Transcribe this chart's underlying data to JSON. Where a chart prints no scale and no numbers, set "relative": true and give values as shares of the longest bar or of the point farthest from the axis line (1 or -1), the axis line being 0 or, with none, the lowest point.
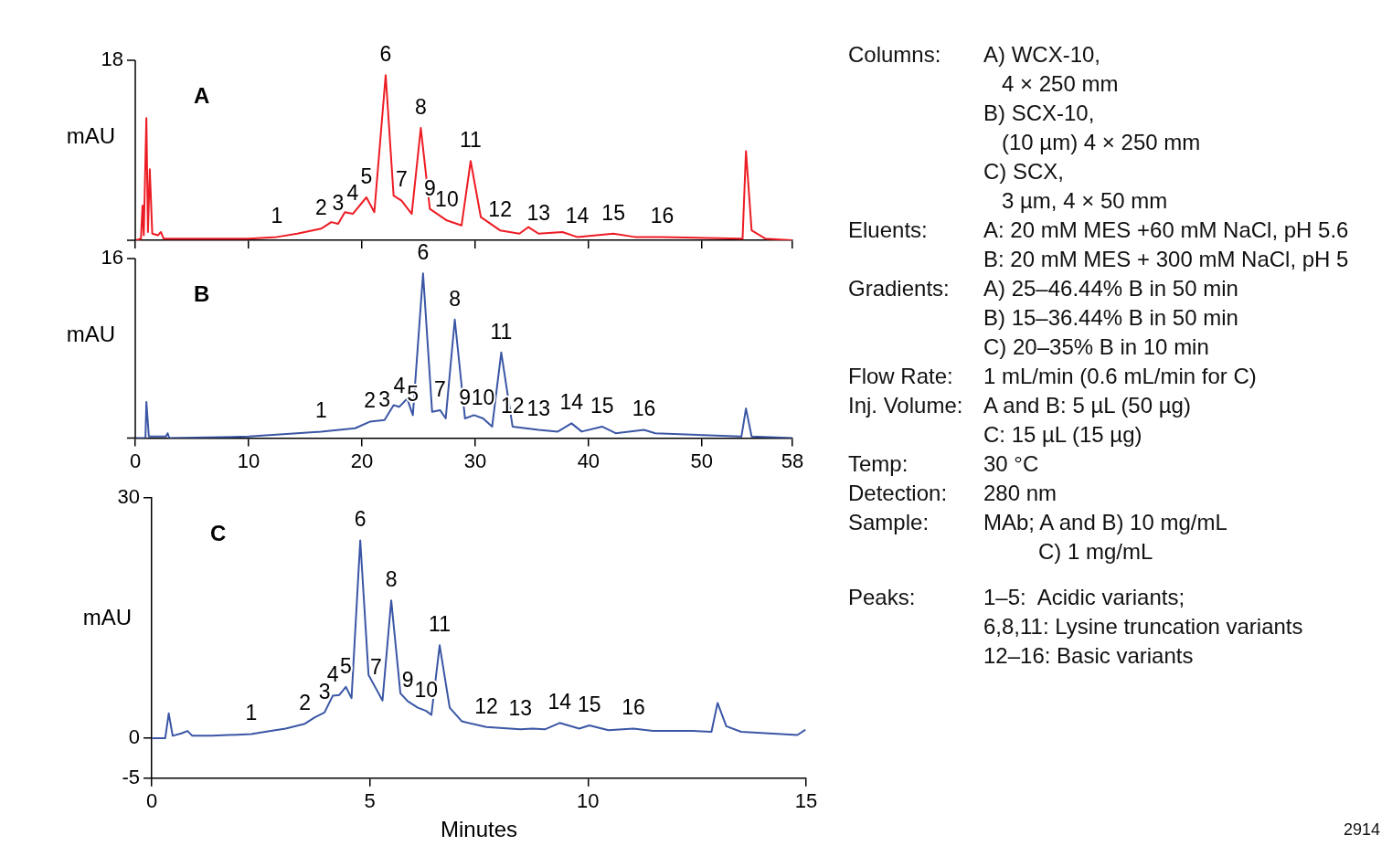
{
  "chart_data": [
    {
      "type": "line",
      "relative": true,
      "ylabel": "mAU",
      "marker": "none",
      "xlim": [
        0,
        58
      ],
      "xticks": [
        0,
        10,
        20,
        30,
        40,
        50,
        58
      ],
      "tick_labels": false,
      "series": [
        {
          "color": "#ed1c24",
          "x": [
            0,
            0.5,
            0.64,
            0.75,
            0.98,
            1.12,
            1.28,
            1.5,
            2.0,
            2.26,
            2.5,
            5,
            10,
            12.5,
            14.3,
            16.4,
            17.3,
            17.9,
            18.5,
            19.2,
            20.4,
            21.1,
            22.1,
            22.8,
            23.5,
            24.4,
            25.2,
            26.0,
            27.5,
            28.8,
            29.6,
            30.5,
            32.2,
            33.9,
            34.7,
            35.6,
            37.7,
            39.0,
            42.2,
            44.1,
            46.5,
            53.6,
            53.9,
            54.4,
            55.6,
            58
          ],
          "values": [
            0,
            0.01,
            0.21,
            0.03,
            0.74,
            0.05,
            0.43,
            0.04,
            0.03,
            0.05,
            0.01,
            0.01,
            0.01,
            0.02,
            0.04,
            0.07,
            0.11,
            0.1,
            0.17,
            0.16,
            0.26,
            0.17,
            1,
            0.27,
            0.24,
            0.16,
            0.68,
            0.19,
            0.12,
            0.09,
            0.48,
            0.14,
            0.06,
            0.04,
            0.08,
            0.04,
            0.05,
            0.02,
            0.04,
            0.02,
            0.02,
            0.01,
            0.54,
            0.06,
            0.01,
            0
          ]
        }
      ],
      "annotations": [
        "A",
        "18",
        {
          "text": "1",
          "x": 12.5,
          "y": 0.02
        },
        {
          "text": "2",
          "x": 16.4,
          "y": 0.07
        },
        {
          "text": "3",
          "x": 17.9,
          "y": 0.1
        },
        {
          "text": "4",
          "x": 19.2,
          "y": 0.16
        },
        {
          "text": "5",
          "x": 20.4,
          "y": 0.26
        },
        {
          "text": "6",
          "x": 22.1,
          "y": 1
        },
        {
          "text": "7",
          "x": 23.5,
          "y": 0.24
        },
        {
          "text": "8",
          "x": 25.2,
          "y": 0.68
        },
        {
          "text": "9",
          "x": 26.0,
          "y": 0.19
        },
        {
          "text": "10",
          "x": 27.5,
          "y": 0.12
        },
        {
          "text": "11",
          "x": 29.6,
          "y": 0.48
        },
        {
          "text": "12",
          "x": 32.2,
          "y": 0.06
        },
        {
          "text": "13",
          "x": 35.6,
          "y": 0.04
        },
        {
          "text": "14",
          "x": 39.0,
          "y": 0.02
        },
        {
          "text": "15",
          "x": 42.2,
          "y": 0.04
        },
        {
          "text": "16",
          "x": 46.5,
          "y": 0.02
        }
      ]
    },
    {
      "type": "line",
      "relative": true,
      "ylabel": "mAU",
      "marker": "none",
      "xlim": [
        0,
        58
      ],
      "xticks": [
        0,
        10,
        20,
        30,
        40,
        50,
        58
      ],
      "tick_labels": "x",
      "series": [
        {
          "color": "#3a56a5",
          "x": [
            0,
            0.9,
            0.98,
            1.2,
            2.7,
            2.86,
            3.0,
            10,
            16.4,
            19.4,
            20.7,
            22.0,
            22.8,
            23.3,
            24.0,
            24.5,
            25.4,
            26.2,
            26.9,
            27.4,
            28.2,
            29.1,
            29.9,
            30.7,
            31.5,
            32.3,
            33.3,
            35.6,
            37.3,
            38.5,
            39.4,
            41.2,
            42.4,
            44.9,
            45.9,
            53.5,
            53.9,
            54.4,
            58
          ],
          "values": [
            0,
            0,
            0.22,
            0.01,
            0.01,
            0.03,
            0,
            0.01,
            0.04,
            0.06,
            0.1,
            0.11,
            0.2,
            0.19,
            0.24,
            0.14,
            1,
            0.16,
            0.17,
            0.12,
            0.72,
            0.12,
            0.14,
            0.12,
            0.07,
            0.52,
            0.07,
            0.05,
            0.04,
            0.09,
            0.04,
            0.07,
            0.03,
            0.05,
            0.03,
            0.01,
            0.18,
            0.01,
            0
          ]
        }
      ],
      "annotations": [
        "B",
        "16",
        {
          "text": "1",
          "x": 16.4,
          "y": 0.04
        },
        {
          "text": "2",
          "x": 20.7,
          "y": 0.1
        },
        {
          "text": "3",
          "x": 22.0,
          "y": 0.11
        },
        {
          "text": "4",
          "x": 23.3,
          "y": 0.19
        },
        {
          "text": "5",
          "x": 24.5,
          "y": 0.14
        },
        {
          "text": "6",
          "x": 25.4,
          "y": 1
        },
        {
          "text": "7",
          "x": 26.9,
          "y": 0.17
        },
        {
          "text": "8",
          "x": 28.2,
          "y": 0.72
        },
        {
          "text": "9",
          "x": 29.1,
          "y": 0.12
        },
        {
          "text": "10",
          "x": 30.7,
          "y": 0.12
        },
        {
          "text": "11",
          "x": 32.3,
          "y": 0.52
        },
        {
          "text": "12",
          "x": 33.3,
          "y": 0.07
        },
        {
          "text": "13",
          "x": 35.6,
          "y": 0.05
        },
        {
          "text": "14",
          "x": 38.5,
          "y": 0.09
        },
        {
          "text": "15",
          "x": 41.2,
          "y": 0.07
        },
        {
          "text": "16",
          "x": 44.9,
          "y": 0.05
        }
      ]
    },
    {
      "type": "line",
      "ylabel": "mAU",
      "xlabel": "Minutes",
      "marker": "none",
      "xlim": [
        0,
        15
      ],
      "xticks": [
        0,
        5,
        10,
        15
      ],
      "ylim": [
        -5,
        30
      ],
      "yticks": [
        -5,
        0,
        30
      ],
      "series": [
        {
          "color": "#3a56a5",
          "x": [
            0,
            0.31,
            0.39,
            0.48,
            0.68,
            0.82,
            0.93,
            1.38,
            2.28,
            2.73,
            3.07,
            3.51,
            3.74,
            3.96,
            4.15,
            4.3,
            4.45,
            4.58,
            4.78,
            4.97,
            5.14,
            5.29,
            5.49,
            5.7,
            5.87,
            6.1,
            6.29,
            6.41,
            6.6,
            6.83,
            7.11,
            7.67,
            8.45,
            8.73,
            9.01,
            9.35,
            9.8,
            10.03,
            10.47,
            11.04,
            11.49,
            12.38,
            12.83,
            12.97,
            13.17,
            13.51,
            14.8,
            14.97
          ],
          "values": [
            0,
            0,
            3.1,
            0.3,
            0.6,
            0.9,
            0.3,
            0.3,
            0.5,
            0.9,
            1.2,
            1.8,
            2.6,
            3.2,
            5.3,
            5.4,
            6.4,
            5.0,
            24.7,
            7.9,
            6.2,
            4.7,
            17.2,
            5.6,
            4.6,
            3.8,
            3.4,
            2.9,
            11.6,
            3.8,
            2.1,
            1.4,
            1.1,
            1.2,
            1.1,
            1.9,
            1.2,
            1.6,
            1.0,
            1.2,
            0.9,
            0.9,
            0.8,
            4.4,
            1.5,
            0.8,
            0.4,
            1.0
          ]
        }
      ],
      "annotations": [
        "C",
        {
          "text": "1",
          "x": 2.28,
          "y": 0.5
        },
        {
          "text": "2",
          "x": 3.51,
          "y": 1.8
        },
        {
          "text": "3",
          "x": 3.96,
          "y": 3.2
        },
        {
          "text": "4",
          "x": 4.15,
          "y": 5.3
        },
        {
          "text": "5",
          "x": 4.45,
          "y": 6.4
        },
        {
          "text": "6",
          "x": 4.78,
          "y": 24.7
        },
        {
          "text": "7",
          "x": 5.14,
          "y": 6.2
        },
        {
          "text": "8",
          "x": 5.49,
          "y": 17.2
        },
        {
          "text": "9",
          "x": 5.87,
          "y": 4.6
        },
        {
          "text": "10",
          "x": 6.29,
          "y": 3.4
        },
        {
          "text": "11",
          "x": 6.6,
          "y": 11.6
        },
        {
          "text": "12",
          "x": 7.67,
          "y": 1.4
        },
        {
          "text": "13",
          "x": 8.45,
          "y": 1.1
        },
        {
          "text": "14",
          "x": 9.35,
          "y": 1.9
        },
        {
          "text": "15",
          "x": 10.03,
          "y": 1.6
        },
        {
          "text": "16",
          "x": 11.04,
          "y": 1.2
        }
      ]
    },
    {
      "type": "other",
      "annotations": [
        "Columns:\tA) WCX-10,",
        "\t   4 × 250 mm",
        "\tB) SCX-10,",
        "\t   (10 µm) 4 × 250 mm",
        "\tC) SCX,",
        "\t   3 µm, 4 × 50 mm",
        "Eluents:\tA: 20 mM MES +60 mM NaCl, pH 5.6",
        "\tB: 20 mM MES + 300 mM NaCl, pH 5",
        "Gradients:\tA) 25–46.44% B in 50 min",
        "\tB) 15–36.44% B in 50 min",
        "\tC) 20–35% B in 10 min",
        "Flow Rate:\t1 mL/min (0.6 mL/min for C)",
        "Inj. Volume:\tA and B: 5 µL (50 µg)",
        "\tC: 15 µL (15 µg)",
        "Temp:\t30 °C",
        "Detection:\t280 nm",
        "Sample:\tMAb; A and B) 10 mg/mL",
        "\t         C) 1 mg/mL",
        "Peaks:\t1–5:  Acidic variants;",
        "\t6,8,11: Lysine truncation variants",
        "\t12–16: Basic variants",
        "2914"
      ]
    }
  ]
}
